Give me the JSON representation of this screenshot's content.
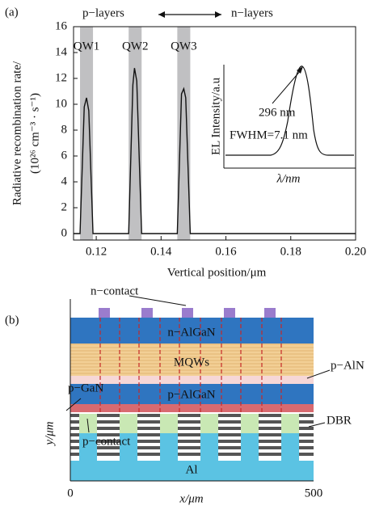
{
  "chart_data": {
    "type": "line",
    "panel_label": "(a)",
    "y_label_lines": [
      "Radiative recombination rate/",
      "(10²⁶ cm⁻³ · s⁻¹)"
    ],
    "x_label": "Vertical position/μm",
    "annotations": {
      "left": "p−layers",
      "right": "n−layers"
    },
    "regions": [
      {
        "label": "QW1",
        "range": [
          0.115,
          0.119
        ]
      },
      {
        "label": "QW2",
        "range": [
          0.13,
          0.134
        ]
      },
      {
        "label": "QW3",
        "range": [
          0.145,
          0.149
        ]
      }
    ],
    "region_color": "#c0c0c2",
    "x": [
      0.113,
      0.115,
      0.1163,
      0.117,
      0.1177,
      0.119,
      0.13,
      0.1313,
      0.1318,
      0.1325,
      0.134,
      0.145,
      0.1463,
      0.147,
      0.1476,
      0.149,
      0.2
    ],
    "values": [
      0,
      0,
      9.8,
      10.5,
      9.5,
      0,
      0,
      11.5,
      12.8,
      11.8,
      0,
      0,
      10.8,
      11.2,
      10.5,
      0,
      0
    ],
    "color": "#111111",
    "xlim": [
      0.113,
      0.2
    ],
    "xticks": [
      0.12,
      0.14,
      0.16,
      0.18,
      {
        "value": 0.2,
        "label": "0.20"
      }
    ],
    "ylim": [
      0,
      16
    ],
    "yticks": [
      0,
      2,
      4,
      6,
      8,
      10,
      12,
      14,
      16
    ],
    "inset": {
      "y_label": "EL Intensity/a.u",
      "x_label": "λ/nm",
      "peak": "296 nm",
      "fwhm": "FWHM=7.1 nm"
    }
  },
  "diagram": {
    "panel_label": "(b)",
    "labels": {
      "n_contact": "n−contact",
      "n_algan": "n−AlGaN",
      "mqws": "MQWs",
      "p_aln": "p−AlN",
      "p_gan": "p−GaN",
      "p_algan": "p−AlGaN",
      "dbr": "DBR",
      "p_contact": "p−contact",
      "al": "Al"
    },
    "y_label": "y/μm",
    "x_label": "x/μm",
    "x_start": "0",
    "x_end": "500"
  }
}
